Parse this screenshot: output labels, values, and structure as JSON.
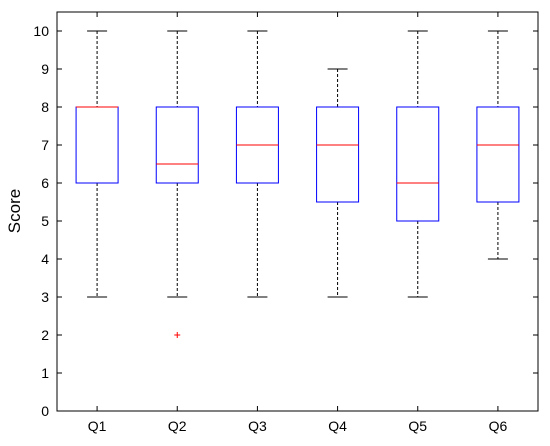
{
  "chart_data": {
    "type": "box",
    "title": "",
    "xlabel": "",
    "ylabel": "Score",
    "ylim": [
      0,
      10.5
    ],
    "yticks": [
      0,
      1,
      2,
      3,
      4,
      5,
      6,
      7,
      8,
      9,
      10
    ],
    "categories": [
      "Q1",
      "Q2",
      "Q3",
      "Q4",
      "Q5",
      "Q6"
    ],
    "boxes": [
      {
        "label": "Q1",
        "whisker_low": 3,
        "q1": 6,
        "median": 8,
        "q3": 8,
        "whisker_high": 10,
        "outliers": []
      },
      {
        "label": "Q2",
        "whisker_low": 3,
        "q1": 6,
        "median": 6.5,
        "q3": 8,
        "whisker_high": 10,
        "outliers": [
          2
        ]
      },
      {
        "label": "Q3",
        "whisker_low": 3,
        "q1": 6,
        "median": 7,
        "q3": 8,
        "whisker_high": 10,
        "outliers": []
      },
      {
        "label": "Q4",
        "whisker_low": 3,
        "q1": 5.5,
        "median": 7,
        "q3": 8,
        "whisker_high": 9,
        "outliers": []
      },
      {
        "label": "Q5",
        "whisker_low": 3,
        "q1": 5,
        "median": 6,
        "q3": 8,
        "whisker_high": 10,
        "outliers": []
      },
      {
        "label": "Q6",
        "whisker_low": 4,
        "q1": 5.5,
        "median": 7,
        "q3": 8,
        "whisker_high": 10,
        "outliers": []
      }
    ],
    "colors": {
      "box": "#0000ff",
      "median": "#ff0000",
      "whisker": "#000000",
      "outlier": "#ff0000",
      "axes": "#000000"
    },
    "grid": false
  }
}
